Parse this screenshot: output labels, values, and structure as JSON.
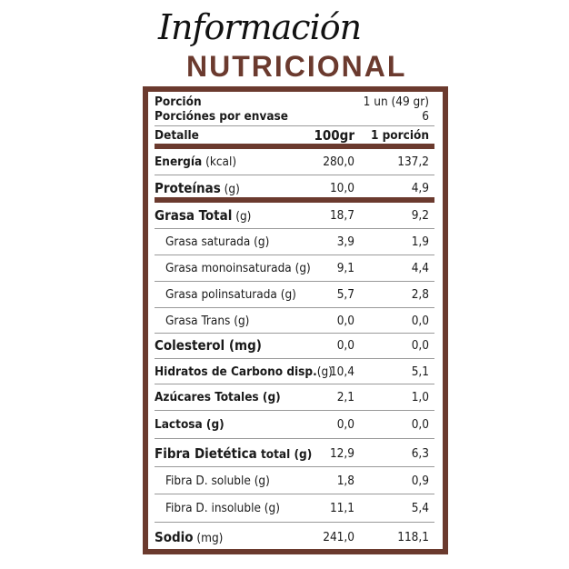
{
  "header": {
    "script": "Información",
    "title": "NUTRICIONAL"
  },
  "serving": {
    "porcion_label": "Porción",
    "porcion_value": "1 un (49  gr)",
    "porciones_label": "Porciónes por envase",
    "porciones_value": "6"
  },
  "columns": {
    "detail": "Detalle",
    "per100": "100gr",
    "perPortion": "1 porción"
  },
  "rows": [
    {
      "name": "Energía",
      "unit": " (kcal)",
      "v100": "280,0",
      "vp": "137,2",
      "style": "bold"
    },
    {
      "name": "Proteínas",
      "unit": " (g)",
      "v100": "10,0",
      "vp": "4,9",
      "style": "big"
    },
    {
      "name": "Grasa Total",
      "unit": " (g)",
      "v100": "18,7",
      "vp": "9,2",
      "style": "big"
    },
    {
      "name": "Grasa saturada (g)",
      "unit": "",
      "v100": "3,9",
      "vp": "1,9",
      "style": "ind"
    },
    {
      "name": "Grasa monoinsaturada (g)",
      "unit": "",
      "v100": "9,1",
      "vp": "4,4",
      "style": "ind"
    },
    {
      "name": "Grasa polinsaturada (g)",
      "unit": "",
      "v100": "5,7",
      "vp": "2,8",
      "style": "ind"
    },
    {
      "name": "Grasa Trans (g)",
      "unit": "",
      "v100": "0,0",
      "vp": "0,0",
      "style": "ind"
    },
    {
      "name": "Colesterol (mg)",
      "unit": "",
      "v100": "0,0",
      "vp": "0,0",
      "style": "big"
    },
    {
      "name": "Hidratos de Carbono disp.",
      "unit": "(g)",
      "v100": "10,4",
      "vp": "5,1",
      "style": "bold"
    },
    {
      "name": "Azúcares Totales (g)",
      "unit": "",
      "v100": "2,1",
      "vp": "1,0",
      "style": "bold"
    },
    {
      "name": "Lactosa (g)",
      "unit": "",
      "v100": "0,0",
      "vp": "0,0",
      "style": "bold"
    },
    {
      "name": "Fibra Dietética",
      "unit": " total (g)",
      "v100": "12,9",
      "vp": "6,3",
      "style": "big"
    },
    {
      "name": "Fibra D. soluble (g)",
      "unit": "",
      "v100": "1,8",
      "vp": "0,9",
      "style": "ind"
    },
    {
      "name": "Fibra D. insoluble (g)",
      "unit": "",
      "v100": "11,1",
      "vp": "5,4",
      "style": "ind"
    },
    {
      "name": "Sodio",
      "unit": " (mg)",
      "v100": "241,0",
      "vp": "118,1",
      "style": "big"
    }
  ],
  "colors": {
    "brand": "#6b3a2e"
  }
}
